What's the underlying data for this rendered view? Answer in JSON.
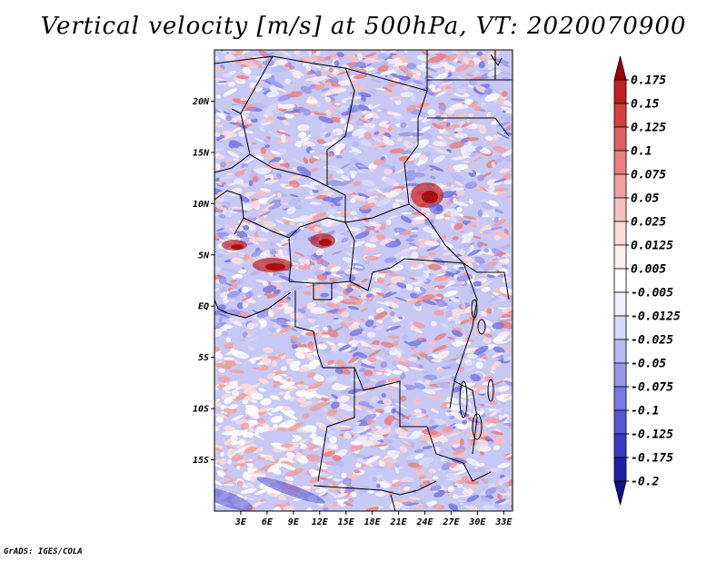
{
  "title": "Vertical velocity [m/s] at 500hPa, VT: 2020070900",
  "credit": "GrADS: IGES/COLA",
  "map": {
    "lat_labels": [
      "20N",
      "15N",
      "10N",
      "5N",
      "EQ",
      "5S",
      "10S",
      "15S"
    ],
    "lon_labels": [
      "3E",
      "6E",
      "9E",
      "12E",
      "15E",
      "18E",
      "21E",
      "24E",
      "27E",
      "30E",
      "33E"
    ],
    "lat_range": [
      -20,
      25
    ],
    "lon_range": [
      0,
      34
    ],
    "variable": "vertical velocity at 500hPa"
  },
  "colorbar": {
    "labels": [
      "0.175",
      "0.15",
      "0.125",
      "0.1",
      "0.075",
      "0.05",
      "0.025",
      "0.0125",
      "0.005",
      "-0.005",
      "-0.0125",
      "-0.025",
      "-0.05",
      "-0.075",
      "-0.1",
      "-0.125",
      "-0.175",
      "-0.2"
    ],
    "colors": [
      "#a00000",
      "#c02020",
      "#d44040",
      "#e06060",
      "#e88080",
      "#f0a0a0",
      "#f6c0c0",
      "#fadcdc",
      "#fff0f0",
      "#ffffff",
      "#f0f0ff",
      "#d8d8fa",
      "#b8b8f2",
      "#9898ea",
      "#7878e0",
      "#5858d4",
      "#3a3ac4",
      "#2020a8",
      "#10108a"
    ]
  }
}
